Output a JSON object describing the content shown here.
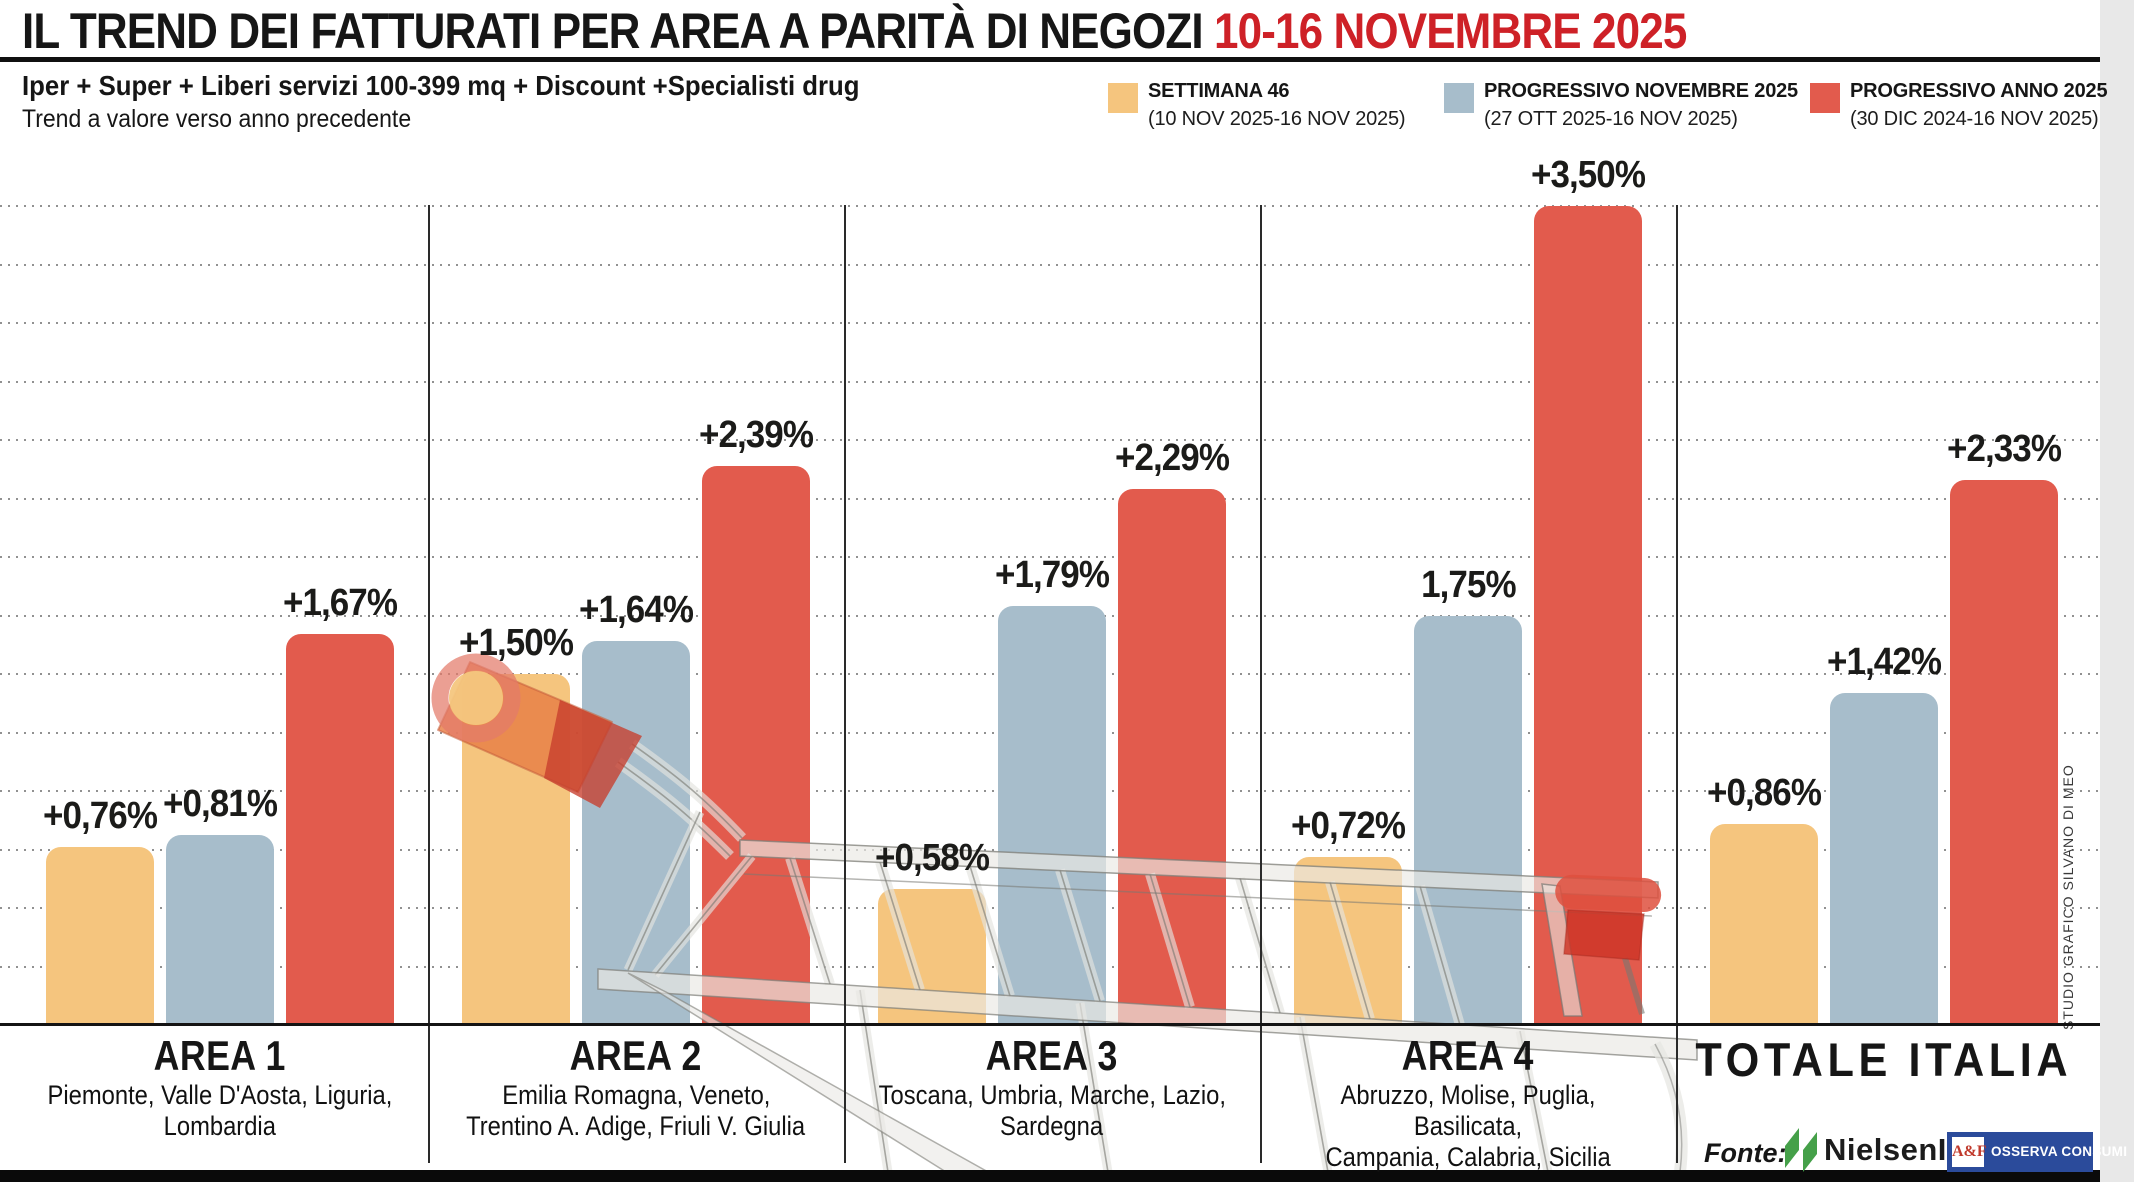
{
  "header": {
    "title_black": "IL TREND DEI FATTURATI PER AREA A PARITÀ DI NEGOZI ",
    "title_red": "10-16 NOVEMBRE 2025",
    "subtitle_bold": "Iper + Super + Liberi servizi 100-399 mq + Discount +Specialisti drug",
    "subtitle": "Trend a valore verso anno precedente"
  },
  "legend": [
    {
      "label": "SETTIMANA 46",
      "sublabel": "(10 NOV 2025-16 NOV 2025)",
      "color": "#F5C57E"
    },
    {
      "label": "PROGRESSIVO NOVEMBRE 2025",
      "sublabel": "(27 OTT 2025-16 NOV 2025)",
      "color": "#A7BDCB"
    },
    {
      "label": "PROGRESSIVO ANNO 2025",
      "sublabel": "(30 DIC 2024-16 NOV 2025)",
      "color": "#E25B4D"
    }
  ],
  "chart_data": {
    "type": "bar",
    "title": "IL TREND DEI FATTURATI PER AREA A PARITÀ DI NEGOZI 10-16 NOVEMBRE 2025",
    "categories": [
      "AREA 1",
      "AREA 2",
      "AREA 3",
      "AREA 4",
      "TOTALE ITALIA"
    ],
    "category_regions": [
      [
        "Piemonte, Valle D'Aosta, Liguria,",
        "Lombardia"
      ],
      [
        "Emilia Romagna, Veneto,",
        "Trentino A. Adige, Friuli V. Giulia"
      ],
      [
        "Toscana, Umbria, Marche, Lazio,",
        "Sardegna"
      ],
      [
        "Abruzzo, Molise, Puglia, Basilicata,",
        "Campania, Calabria, Sicilia"
      ],
      []
    ],
    "series": [
      {
        "name": "SETTIMANA 46",
        "color": "#F5C57E",
        "values": [
          0.76,
          1.5,
          0.58,
          0.72,
          0.86
        ],
        "labels": [
          "+0,76%",
          "+1,50%",
          "+0,58%",
          "+0,72%",
          "+0,86%"
        ]
      },
      {
        "name": "PROGRESSIVO NOVEMBRE 2025",
        "color": "#A7BDCB",
        "values": [
          0.81,
          1.64,
          1.79,
          1.75,
          1.42
        ],
        "labels": [
          "+0,81%",
          "+1,64%",
          "+1,79%",
          "1,75%",
          "+1,42%"
        ]
      },
      {
        "name": "PROGRESSIVO ANNO 2025",
        "color": "#E25B4D",
        "values": [
          1.67,
          2.39,
          2.29,
          3.5,
          2.33
        ],
        "labels": [
          "+1,67%",
          "+2,39%",
          "+2,29%",
          "+3,50%",
          "+2,33%"
        ]
      }
    ],
    "ylabel": "",
    "xlabel": "",
    "ylim": [
      0,
      3.75
    ],
    "grid": "dotted horizontal, 0.25% steps",
    "legend_position": "top-right",
    "value_suffix": "%"
  },
  "footer": {
    "fonte_label": "Fonte:",
    "nielsen_text": "NielsenIQ",
    "badge_af": "A&F",
    "badge_text": "OSSERVA CONSUMI",
    "credit": "STUDIO GRAFICO SILVANO DI MEO"
  },
  "colors": {
    "bar_orange": "#F5C57E",
    "bar_blue": "#A7BDCB",
    "bar_red": "#E25B4D",
    "title_red": "#CE2127",
    "nielsen_green": "#45A049",
    "badge_blue": "#2B4B9B",
    "af_red": "#C0392B",
    "gridline_gray": "#919191"
  }
}
